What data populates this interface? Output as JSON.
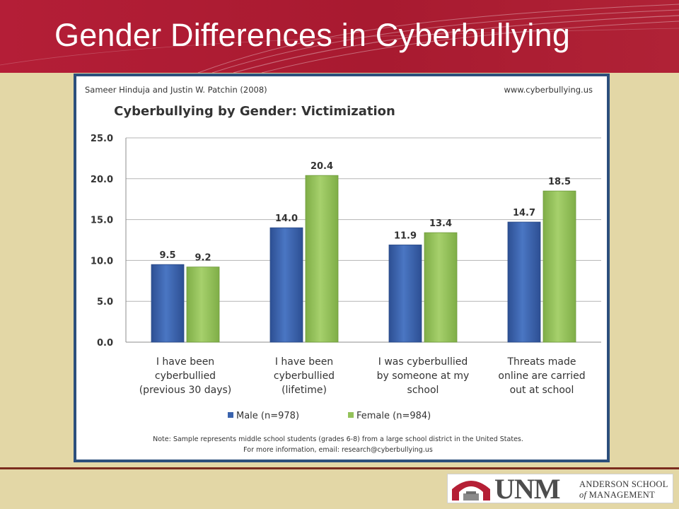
{
  "slide": {
    "title": "Gender Differences in Cyberbullying"
  },
  "colors": {
    "banner": "#b01d35",
    "background": "#e3d7a6",
    "frame": "#2c4f7c",
    "male": "#3a63ad",
    "female": "#93c25a"
  },
  "chart_data": {
    "type": "bar",
    "source": "Sameer Hinduja and Justin W. Patchin (2008)",
    "website": "www.cyberbullying.us",
    "title": "Cyberbullying by Gender: Victimization",
    "categories": [
      [
        "I have been",
        "cyberbullied",
        "(previous 30 days)"
      ],
      [
        "I have been",
        "cyberbullied",
        "(lifetime)"
      ],
      [
        "I was cyberbullied",
        "by someone at my",
        "school"
      ],
      [
        "Threats made",
        "online are carried",
        "out at school"
      ]
    ],
    "series": [
      {
        "name": "Male (n=978)",
        "values": [
          9.5,
          14.0,
          11.9,
          14.7
        ],
        "color": "#3a63ad"
      },
      {
        "name": "Female (n=984)",
        "values": [
          9.2,
          20.4,
          13.4,
          18.5
        ],
        "color": "#93c25a"
      }
    ],
    "yticks": [
      "0.0",
      "5.0",
      "10.0",
      "15.0",
      "20.0",
      "25.0"
    ],
    "ylim": [
      0,
      25
    ],
    "grid": true,
    "legend": "bottom",
    "notes": [
      "Note: Sample represents middle school students (grades 6-8) from a large school district in the United States.",
      "For more information,  email: research@cyberbullying.us"
    ]
  },
  "footer": {
    "logo_text": "UNM",
    "logo_line1": "ANDERSON SCHOOL",
    "logo_line2_italic": "of",
    "logo_line2": "MANAGEMENT"
  }
}
